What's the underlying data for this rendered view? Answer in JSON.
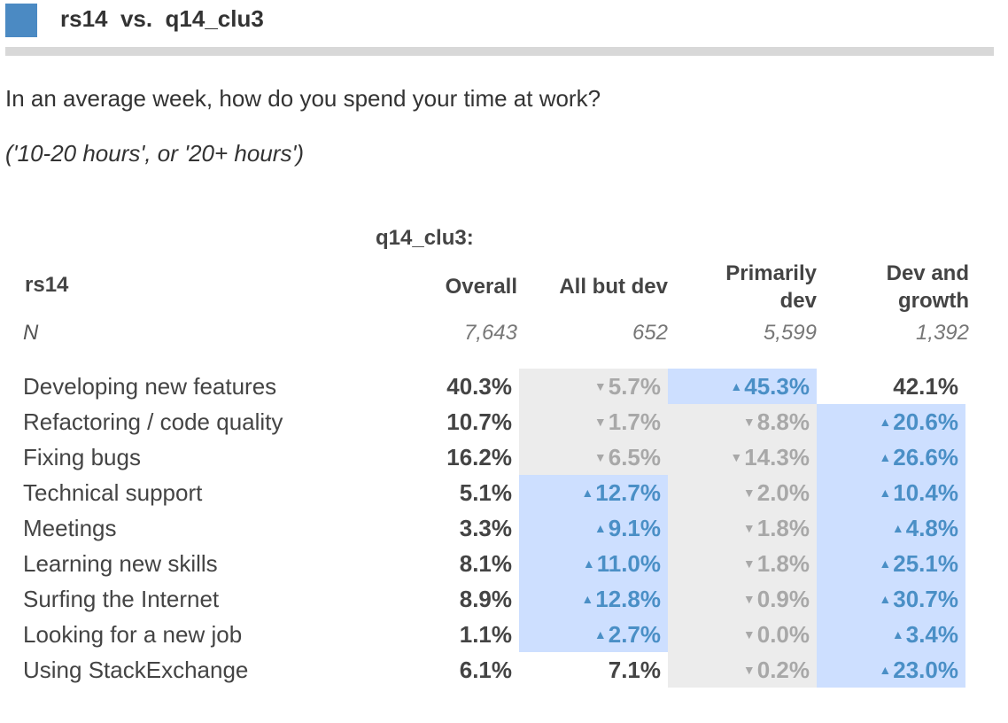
{
  "header": {
    "title": "rs14  vs.  q14_clu3",
    "accent_color": "#4b8ac3"
  },
  "question": "In an average week, how do you spend your time at work?",
  "subquestion": "('10-20 hours', or '20+ hours')",
  "chart_data": {
    "type": "table",
    "column_variable": "q14_clu3:",
    "row_variable": "rs14",
    "columns": [
      "Overall",
      "All but dev",
      "Primarily dev",
      "Dev and growth"
    ],
    "n_label": "N",
    "n": [
      "7,643",
      "652",
      "5,599",
      "1,392"
    ],
    "rows": [
      {
        "label": "Developing new features",
        "values": [
          "40.3%",
          "5.7%",
          "45.3%",
          "42.1%"
        ],
        "directions": [
          "none",
          "down",
          "up",
          "none"
        ],
        "highlight": [
          "none",
          "gray",
          "blue",
          "none"
        ]
      },
      {
        "label": "Refactoring / code quality",
        "values": [
          "10.7%",
          "1.7%",
          "8.8%",
          "20.6%"
        ],
        "directions": [
          "none",
          "down",
          "down",
          "up"
        ],
        "highlight": [
          "none",
          "gray",
          "gray",
          "blue"
        ]
      },
      {
        "label": "Fixing bugs",
        "values": [
          "16.2%",
          "6.5%",
          "14.3%",
          "26.6%"
        ],
        "directions": [
          "none",
          "down",
          "down",
          "up"
        ],
        "highlight": [
          "none",
          "gray",
          "gray",
          "blue"
        ]
      },
      {
        "label": "Technical support",
        "values": [
          "5.1%",
          "12.7%",
          "2.0%",
          "10.4%"
        ],
        "directions": [
          "none",
          "up",
          "down",
          "up"
        ],
        "highlight": [
          "none",
          "blue",
          "gray",
          "blue"
        ]
      },
      {
        "label": "Meetings",
        "values": [
          "3.3%",
          "9.1%",
          "1.8%",
          "4.8%"
        ],
        "directions": [
          "none",
          "up",
          "down",
          "up"
        ],
        "highlight": [
          "none",
          "blue",
          "gray",
          "blue"
        ]
      },
      {
        "label": "Learning new skills",
        "values": [
          "8.1%",
          "11.0%",
          "1.8%",
          "25.1%"
        ],
        "directions": [
          "none",
          "up",
          "down",
          "up"
        ],
        "highlight": [
          "none",
          "blue",
          "gray",
          "blue"
        ]
      },
      {
        "label": "Surfing the Internet",
        "values": [
          "8.9%",
          "12.8%",
          "0.9%",
          "30.7%"
        ],
        "directions": [
          "none",
          "up",
          "down",
          "up"
        ],
        "highlight": [
          "none",
          "blue",
          "gray",
          "blue"
        ]
      },
      {
        "label": "Looking for a new job",
        "values": [
          "1.1%",
          "2.7%",
          "0.0%",
          "3.4%"
        ],
        "directions": [
          "none",
          "up",
          "down",
          "up"
        ],
        "highlight": [
          "none",
          "blue",
          "gray",
          "blue"
        ]
      },
      {
        "label": "Using StackExchange",
        "values": [
          "6.1%",
          "7.1%",
          "0.2%",
          "23.0%"
        ],
        "directions": [
          "none",
          "none",
          "down",
          "up"
        ],
        "highlight": [
          "none",
          "none",
          "gray",
          "blue"
        ]
      }
    ],
    "colors": {
      "up_text": "#4a8fc6",
      "down_text": "#a8a8a8",
      "up_bg": "#cddfff",
      "down_bg": "#ececec"
    }
  }
}
